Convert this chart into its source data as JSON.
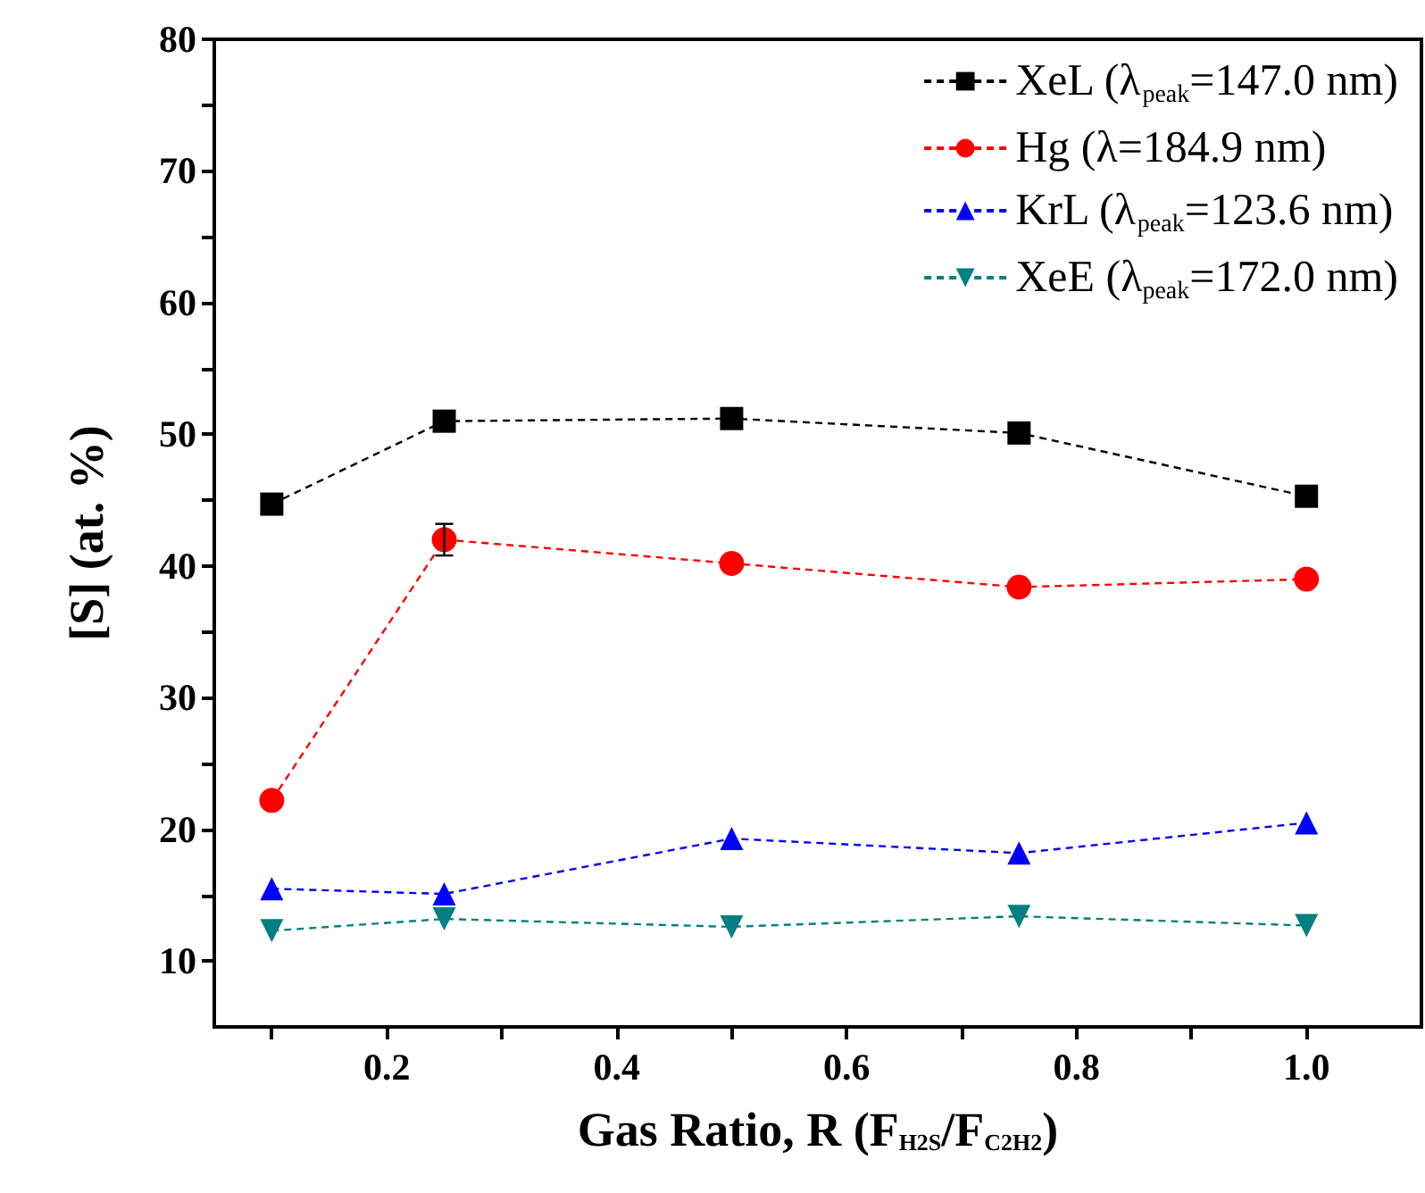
{
  "chart_data": {
    "type": "line",
    "xlabel": "Gas Ratio, R (F$_{H2S}$/F$_{C2H2}$)",
    "ylabel": "[S] (at. %)",
    "x": [
      0.1,
      0.25,
      0.5,
      0.75,
      1.0
    ],
    "series": [
      {
        "name": "XeL (λ$_{peak}$=147.0 nm)",
        "color": "#000000",
        "marker": "square",
        "values": [
          44.7,
          51.0,
          51.2,
          50.1,
          45.3
        ]
      },
      {
        "name": "Hg (λ=184.9 nm)",
        "color": "#ff0000",
        "marker": "circle",
        "values": [
          22.2,
          42.0,
          40.2,
          38.4,
          39.0
        ],
        "errors": [
          null,
          1.2,
          null,
          null,
          null
        ]
      },
      {
        "name": "KrL (λ$_{peak}$=123.6 nm)",
        "color": "#0000ff",
        "marker": "triangle",
        "values": [
          15.5,
          15.1,
          19.3,
          18.2,
          20.5
        ]
      },
      {
        "name": "XeE (λ$_{peak}$=172.0 nm)",
        "color": "#008080",
        "marker": "triangle-down",
        "values": [
          12.3,
          13.2,
          12.6,
          13.4,
          12.7
        ]
      }
    ],
    "xlim": [
      0.05,
      1.1
    ],
    "xticks": [
      {
        "value": 0.1,
        "label": null
      },
      0.2,
      {
        "value": 0.3,
        "label": null
      },
      0.4,
      {
        "value": 0.5,
        "label": null
      },
      0.6,
      {
        "value": 0.7,
        "label": null
      },
      0.8,
      {
        "value": 0.9,
        "label": null
      },
      "1.0"
    ],
    "ylim": [
      5,
      80
    ],
    "yticks": [
      10,
      {
        "value": 15,
        "label": null
      },
      20,
      {
        "value": 25,
        "label": null
      },
      30,
      {
        "value": 35,
        "label": null
      },
      40,
      {
        "value": 45,
        "label": null
      },
      50,
      {
        "value": 55,
        "label": null
      },
      60,
      {
        "value": 65,
        "label": null
      },
      70,
      {
        "value": 75,
        "label": null
      },
      80
    ],
    "line_style": "dashed",
    "legend": "top right",
    "grid": false
  }
}
